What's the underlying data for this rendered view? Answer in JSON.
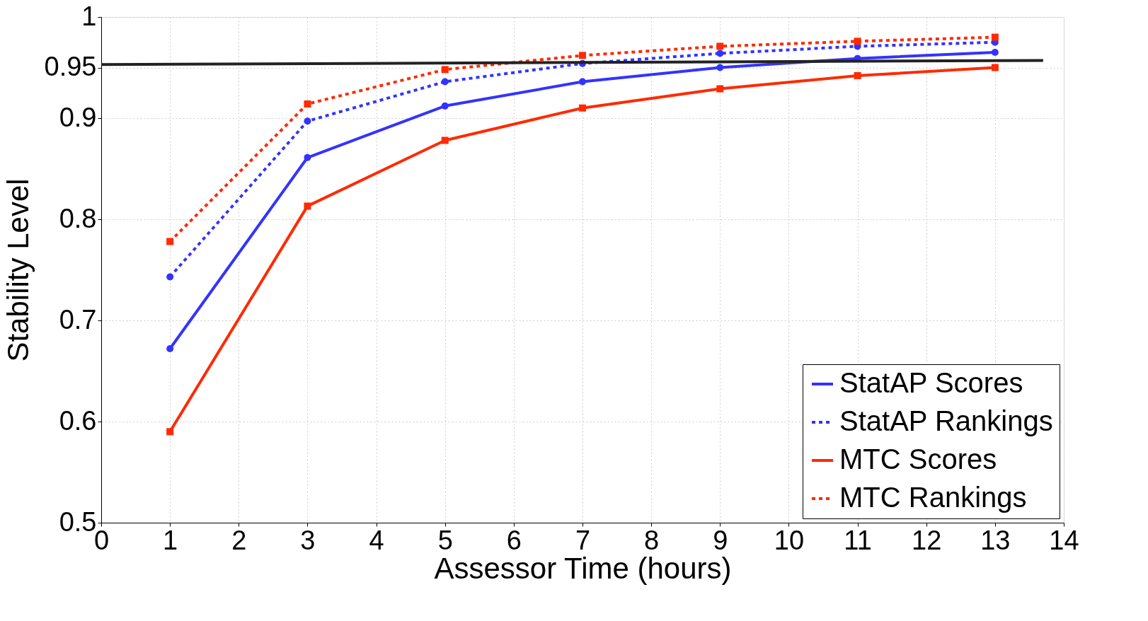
{
  "chart_data": {
    "type": "line",
    "xlabel": "Assessor Time (hours)",
    "ylabel": "Stability Level",
    "xlim": [
      0,
      14
    ],
    "xticks": [
      0,
      1,
      2,
      3,
      4,
      5,
      6,
      7,
      8,
      9,
      10,
      11,
      12,
      13,
      14
    ],
    "ylim": [
      0.5,
      1
    ],
    "yticks": [
      0.5,
      0.6,
      0.7,
      0.8,
      0.9,
      0.95,
      1
    ],
    "grid": true,
    "legend": "bottom right",
    "series": [
      {
        "name": "StatAP Scores",
        "color": "#3333ff",
        "marker": "circle",
        "line_style": "solid",
        "x": [
          1,
          3,
          5,
          7,
          9,
          11,
          13
        ],
        "values": [
          0.672,
          0.861,
          0.912,
          0.936,
          0.95,
          0.959,
          0.965
        ]
      },
      {
        "name": "StatAP Rankings",
        "color": "#3333ff",
        "marker": "circle",
        "line_style": "dotted",
        "x": [
          1,
          3,
          5,
          7,
          9,
          11,
          13
        ],
        "values": [
          0.743,
          0.897,
          0.936,
          0.954,
          0.964,
          0.971,
          0.975
        ]
      },
      {
        "name": "MTC Scores",
        "color": "#ff2a00",
        "marker": "square",
        "line_style": "solid",
        "x": [
          1,
          3,
          5,
          7,
          9,
          11,
          13
        ],
        "values": [
          0.59,
          0.813,
          0.878,
          0.91,
          0.929,
          0.942,
          0.95
        ]
      },
      {
        "name": "MTC Rankings",
        "color": "#ff2a00",
        "marker": "square",
        "line_style": "dotted",
        "x": [
          1,
          3,
          5,
          7,
          9,
          11,
          13
        ],
        "values": [
          0.778,
          0.914,
          0.948,
          0.962,
          0.971,
          0.976,
          0.98
        ]
      },
      {
        "color": "#222222",
        "marker": "none",
        "line_style": "solid",
        "x": [
          0,
          13.7
        ],
        "values": [
          0.953,
          0.957
        ]
      }
    ]
  }
}
